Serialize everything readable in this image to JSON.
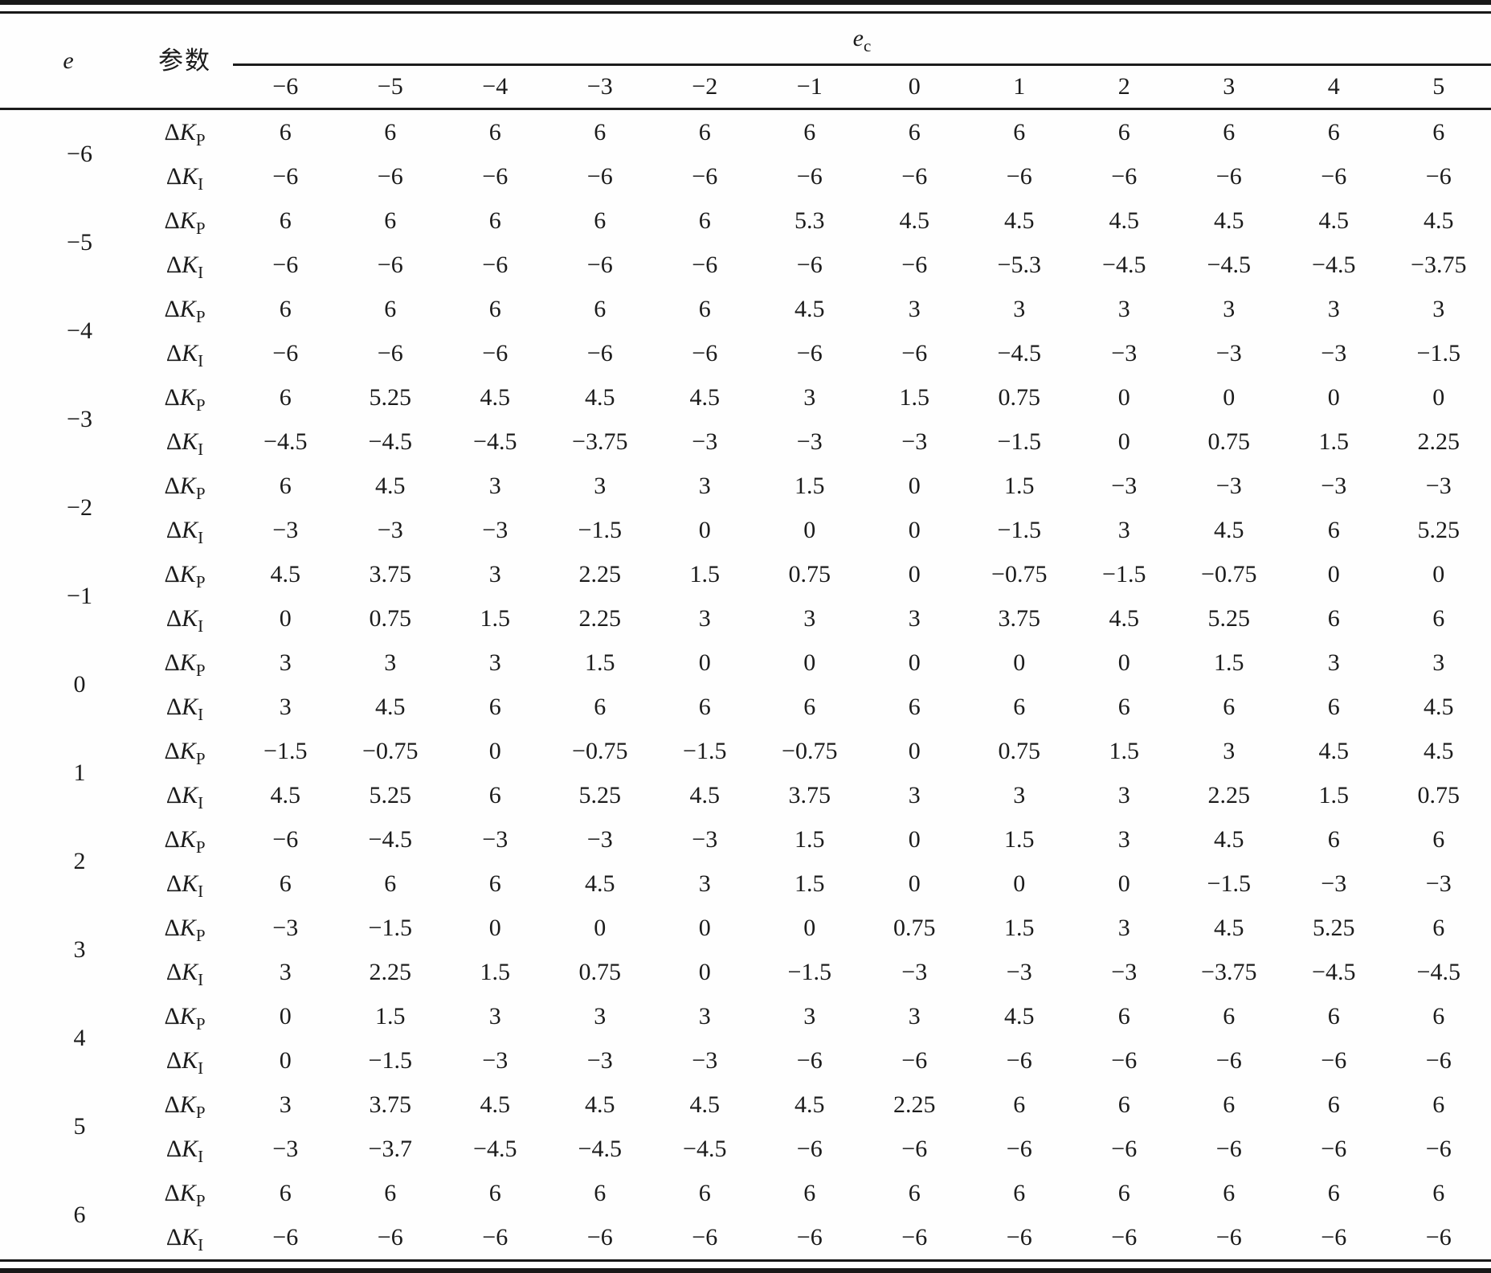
{
  "table": {
    "e_header": "e",
    "param_header": "参数",
    "ec_header": {
      "base": "e",
      "sub": "c"
    },
    "ec_columns": [
      "-6",
      "-5",
      "-4",
      "-3",
      "-2",
      "-1",
      "0",
      "1",
      "2",
      "3",
      "4",
      "5"
    ],
    "kp_label": {
      "delta": "Δ",
      "symbol": "K",
      "sub": "P"
    },
    "ki_label": {
      "delta": "Δ",
      "symbol": "K",
      "sub": "I"
    },
    "rows": [
      {
        "e": "-6",
        "kp": [
          "6",
          "6",
          "6",
          "6",
          "6",
          "6",
          "6",
          "6",
          "6",
          "6",
          "6",
          "6"
        ],
        "ki": [
          "-6",
          "-6",
          "-6",
          "-6",
          "-6",
          "-6",
          "-6",
          "-6",
          "-6",
          "-6",
          "-6",
          "-6"
        ]
      },
      {
        "e": "-5",
        "kp": [
          "6",
          "6",
          "6",
          "6",
          "6",
          "5.3",
          "4.5",
          "4.5",
          "4.5",
          "4.5",
          "4.5",
          "4.5"
        ],
        "ki": [
          "-6",
          "-6",
          "-6",
          "-6",
          "-6",
          "-6",
          "-6",
          "-5.3",
          "-4.5",
          "-4.5",
          "-4.5",
          "-3.75"
        ]
      },
      {
        "e": "-4",
        "kp": [
          "6",
          "6",
          "6",
          "6",
          "6",
          "4.5",
          "3",
          "3",
          "3",
          "3",
          "3",
          "3"
        ],
        "ki": [
          "-6",
          "-6",
          "-6",
          "-6",
          "-6",
          "-6",
          "-6",
          "-4.5",
          "-3",
          "-3",
          "-3",
          "-1.5"
        ]
      },
      {
        "e": "-3",
        "kp": [
          "6",
          "5.25",
          "4.5",
          "4.5",
          "4.5",
          "3",
          "1.5",
          "0.75",
          "0",
          "0",
          "0",
          "0"
        ],
        "ki": [
          "-4.5",
          "-4.5",
          "-4.5",
          "-3.75",
          "-3",
          "-3",
          "-3",
          "-1.5",
          "0",
          "0.75",
          "1.5",
          "2.25"
        ]
      },
      {
        "e": "-2",
        "kp": [
          "6",
          "4.5",
          "3",
          "3",
          "3",
          "1.5",
          "0",
          "1.5",
          "-3",
          "-3",
          "-3",
          "-3"
        ],
        "ki": [
          "-3",
          "-3",
          "-3",
          "-1.5",
          "0",
          "0",
          "0",
          "-1.5",
          "3",
          "4.5",
          "6",
          "5.25"
        ]
      },
      {
        "e": "-1",
        "kp": [
          "4.5",
          "3.75",
          "3",
          "2.25",
          "1.5",
          "0.75",
          "0",
          "-0.75",
          "-1.5",
          "-0.75",
          "0",
          "0"
        ],
        "ki": [
          "0",
          "0.75",
          "1.5",
          "2.25",
          "3",
          "3",
          "3",
          "3.75",
          "4.5",
          "5.25",
          "6",
          "6"
        ]
      },
      {
        "e": "0",
        "kp": [
          "3",
          "3",
          "3",
          "1.5",
          "0",
          "0",
          "0",
          "0",
          "0",
          "1.5",
          "3",
          "3"
        ],
        "ki": [
          "3",
          "4.5",
          "6",
          "6",
          "6",
          "6",
          "6",
          "6",
          "6",
          "6",
          "6",
          "4.5"
        ]
      },
      {
        "e": "1",
        "kp": [
          "-1.5",
          "-0.75",
          "0",
          "-0.75",
          "-1.5",
          "-0.75",
          "0",
          "0.75",
          "1.5",
          "3",
          "4.5",
          "4.5"
        ],
        "ki": [
          "4.5",
          "5.25",
          "6",
          "5.25",
          "4.5",
          "3.75",
          "3",
          "3",
          "3",
          "2.25",
          "1.5",
          "0.75"
        ]
      },
      {
        "e": "2",
        "kp": [
          "-6",
          "-4.5",
          "-3",
          "-3",
          "-3",
          "1.5",
          "0",
          "1.5",
          "3",
          "4.5",
          "6",
          "6"
        ],
        "ki": [
          "6",
          "6",
          "6",
          "4.5",
          "3",
          "1.5",
          "0",
          "0",
          "0",
          "-1.5",
          "-3",
          "-3"
        ]
      },
      {
        "e": "3",
        "kp": [
          "-3",
          "-1.5",
          "0",
          "0",
          "0",
          "0",
          "0.75",
          "1.5",
          "3",
          "4.5",
          "5.25",
          "6"
        ],
        "ki": [
          "3",
          "2.25",
          "1.5",
          "0.75",
          "0",
          "-1.5",
          "-3",
          "-3",
          "-3",
          "-3.75",
          "-4.5",
          "-4.5"
        ]
      },
      {
        "e": "4",
        "kp": [
          "0",
          "1.5",
          "3",
          "3",
          "3",
          "3",
          "3",
          "4.5",
          "6",
          "6",
          "6",
          "6"
        ],
        "ki": [
          "0",
          "-1.5",
          "-3",
          "-3",
          "-3",
          "-6",
          "-6",
          "-6",
          "-6",
          "-6",
          "-6",
          "-6"
        ]
      },
      {
        "e": "5",
        "kp": [
          "3",
          "3.75",
          "4.5",
          "4.5",
          "4.5",
          "4.5",
          "2.25",
          "6",
          "6",
          "6",
          "6",
          "6"
        ],
        "ki": [
          "-3",
          "-3.7",
          "-4.5",
          "-4.5",
          "-4.5",
          "-6",
          "-6",
          "-6",
          "-6",
          "-6",
          "-6",
          "-6"
        ]
      },
      {
        "e": "6",
        "kp": [
          "6",
          "6",
          "6",
          "6",
          "6",
          "6",
          "6",
          "6",
          "6",
          "6",
          "6",
          "6"
        ],
        "ki": [
          "-6",
          "-6",
          "-6",
          "-6",
          "-6",
          "-6",
          "-6",
          "-6",
          "-6",
          "-6",
          "-6",
          "-6"
        ]
      }
    ]
  }
}
